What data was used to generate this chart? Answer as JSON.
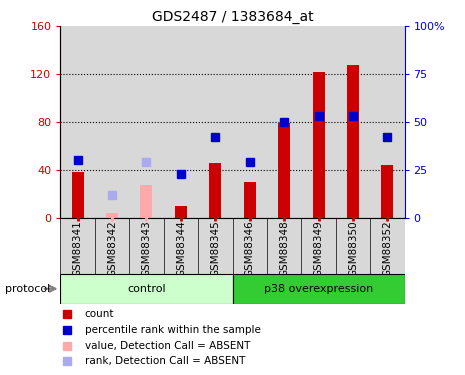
{
  "title": "GDS2487 / 1383684_at",
  "samples": [
    "GSM88341",
    "GSM88342",
    "GSM88343",
    "GSM88344",
    "GSM88345",
    "GSM88346",
    "GSM88348",
    "GSM88349",
    "GSM88350",
    "GSM88352"
  ],
  "counts": [
    38,
    null,
    null,
    10,
    46,
    30,
    79,
    122,
    128,
    44
  ],
  "counts_absent": [
    null,
    4,
    27,
    null,
    null,
    null,
    null,
    null,
    null,
    null
  ],
  "percentile_ranks": [
    30,
    null,
    null,
    23,
    42,
    29,
    50,
    53,
    53,
    42
  ],
  "percentile_ranks_absent": [
    null,
    12,
    29,
    null,
    null,
    null,
    null,
    null,
    null,
    null
  ],
  "bar_color_present": "#cc0000",
  "bar_color_absent": "#ffaaaa",
  "rank_color_present": "#0000cc",
  "rank_color_absent": "#aaaaee",
  "ylim_left": [
    0,
    160
  ],
  "ylim_right": [
    0,
    100
  ],
  "yticks_left": [
    0,
    40,
    80,
    120,
    160
  ],
  "yticks_right": [
    0,
    25,
    50,
    75,
    100
  ],
  "ytick_labels_left": [
    "0",
    "40",
    "80",
    "120",
    "160"
  ],
  "ytick_labels_right": [
    "0",
    "25",
    "50",
    "75",
    "100%"
  ],
  "group_control_label": "control",
  "group_p38_label": "p38 overexpression",
  "protocol_label": "protocol",
  "legend_items": [
    {
      "label": "count",
      "color": "#cc0000"
    },
    {
      "label": "percentile rank within the sample",
      "color": "#0000cc"
    },
    {
      "label": "value, Detection Call = ABSENT",
      "color": "#ffaaaa"
    },
    {
      "label": "rank, Detection Call = ABSENT",
      "color": "#aaaaee"
    }
  ],
  "bar_width": 0.35,
  "marker_size": 6,
  "bg_color": "#d8d8d8",
  "plot_bg": "#ffffff",
  "ctrl_color_light": "#ccffcc",
  "ctrl_color_dark": "#44dd44",
  "p38_color": "#33cc33"
}
